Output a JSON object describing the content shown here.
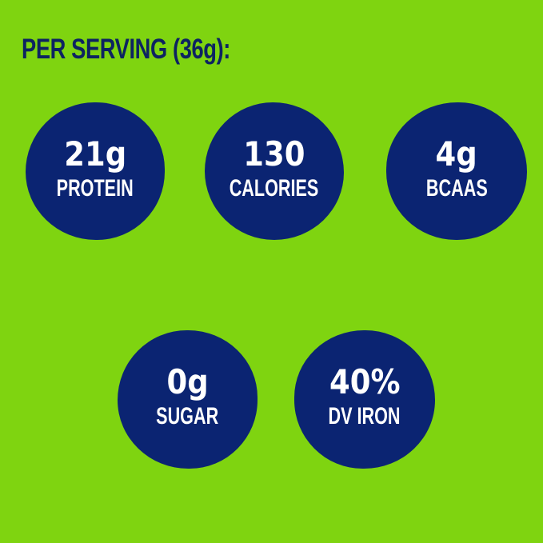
{
  "colors": {
    "background": "#7fd410",
    "circle": "#0b2472",
    "heading_text": "#0d2361",
    "circle_text": "#ffffff"
  },
  "heading": "PER SERVING (36g):",
  "stats": [
    {
      "id": "protein",
      "value": "21g",
      "label": "PROTEIN"
    },
    {
      "id": "calories",
      "value": "130",
      "label": "CALORIES"
    },
    {
      "id": "bcaas",
      "value": "4g",
      "label": "BCAAS"
    },
    {
      "id": "sugar",
      "value": "0g",
      "label": "SUGAR"
    },
    {
      "id": "dv-iron",
      "value": "40%",
      "label": "DV IRON"
    }
  ]
}
